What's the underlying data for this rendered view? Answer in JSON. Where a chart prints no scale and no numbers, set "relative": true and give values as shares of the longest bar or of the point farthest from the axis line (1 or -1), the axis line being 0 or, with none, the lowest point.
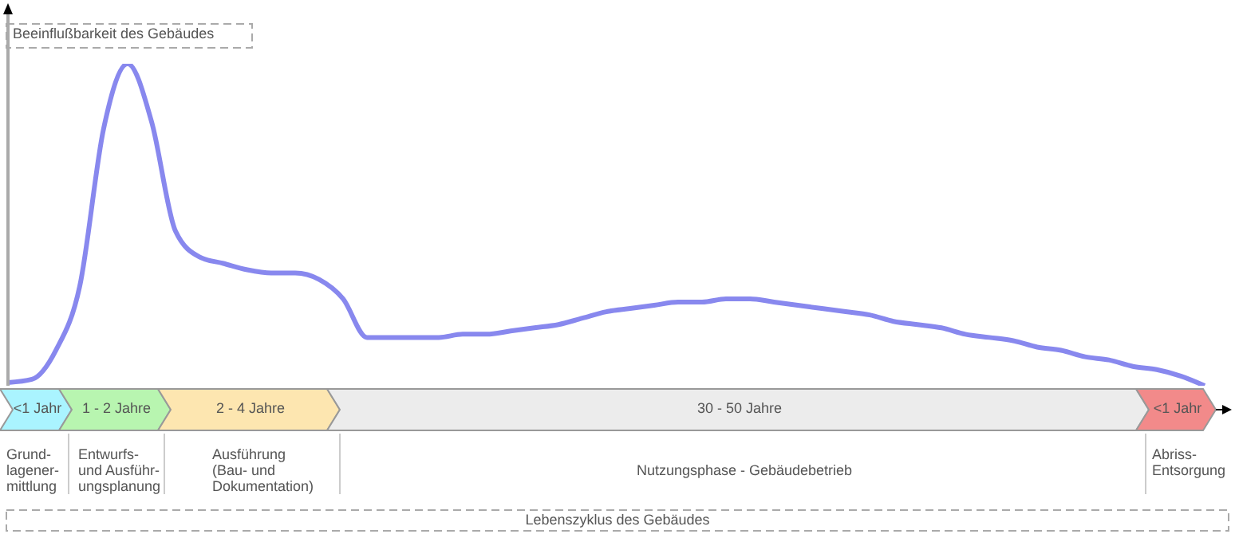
{
  "chart_data": {
    "type": "line",
    "relative": true,
    "grid": false,
    "legend": false,
    "marker": "none",
    "ylabel": "Beeinflußbarkeit des Gebäudes",
    "categories": [
      null,
      null,
      null,
      null,
      null,
      null,
      null,
      null,
      null,
      null,
      null,
      null,
      null,
      null,
      null,
      null,
      null,
      null,
      null,
      null,
      null,
      null,
      null,
      null,
      null,
      null,
      null,
      null,
      null,
      null,
      null,
      null,
      null,
      null,
      null,
      null,
      null,
      null,
      null,
      null,
      null,
      null,
      null,
      null,
      null,
      null,
      null,
      null,
      null,
      null,
      null
    ],
    "series": [
      {
        "color": "#8888ee",
        "values": [
          0.01,
          0.02,
          0.11,
          0.31,
          0.8,
          1,
          0.82,
          0.48,
          0.4,
          0.38,
          0.36,
          0.35,
          0.35,
          0.33,
          0.27,
          0.15,
          0.15,
          0.15,
          0.15,
          0.16,
          0.16,
          0.17,
          0.18,
          0.19,
          0.21,
          0.23,
          0.24,
          0.25,
          0.26,
          0.26,
          0.27,
          0.27,
          0.26,
          0.25,
          0.24,
          0.23,
          0.22,
          0.2,
          0.19,
          0.18,
          0.16,
          0.15,
          0.14,
          0.12,
          0.11,
          0.09,
          0.08,
          0.06,
          0.05,
          0.03,
          0
        ]
      }
    ],
    "annotations": [
      "<1 Jahr",
      "1 - 2 Jahre",
      "2 - 4 Jahre",
      "30 - 50 Jahre",
      "<1 Jahr",
      "Grund-\nlagener-\nmittlung",
      "Entwurfs-\nund Ausführ-\nungsplanung",
      "Ausführung\n(Bau- und\nDokumentation)",
      "Nutzungsphase - Gebäudebetrieb",
      "Abriss-\nEntsorgung",
      "Lebenszyklus des Gebäudes"
    ]
  }
}
